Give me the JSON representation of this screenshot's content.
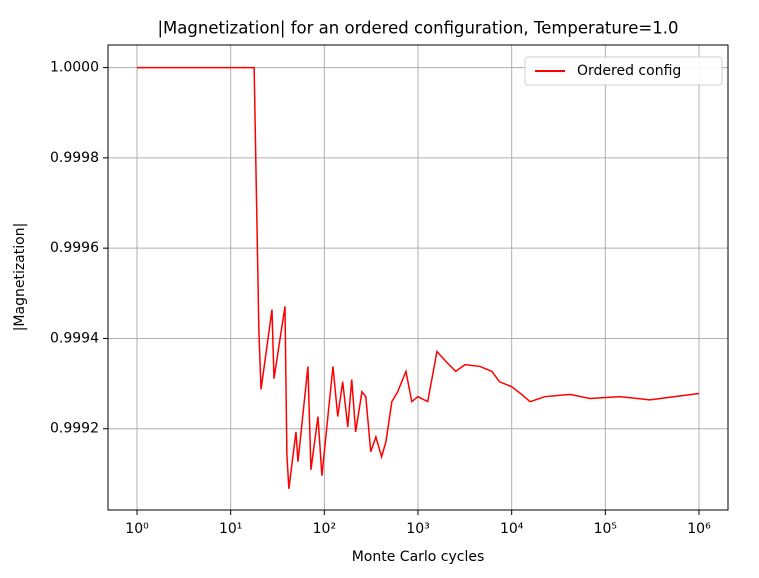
{
  "chart_data": {
    "type": "line",
    "title": "|Magnetization| for an ordered configuration, Temperature=1.0",
    "x_label": "Monte Carlo cycles",
    "y_label": "|Magnetization|",
    "x_scale": "log",
    "grid": true,
    "legend_position": "upper right",
    "xlim": [
      0.49,
      2040000
    ],
    "ylim": [
      0.99902,
      1.00005
    ],
    "xticks": [
      {
        "value": 1,
        "label": "10⁰"
      },
      {
        "value": 10,
        "label": "10¹"
      },
      {
        "value": 100,
        "label": "10²"
      },
      {
        "value": 1000,
        "label": "10³"
      },
      {
        "value": 10000,
        "label": "10⁴"
      },
      {
        "value": 100000,
        "label": "10⁵"
      },
      {
        "value": 1000000,
        "label": "10⁶"
      }
    ],
    "yticks": [
      {
        "value": 0.9992,
        "label": "0.9992"
      },
      {
        "value": 0.9994,
        "label": "0.9994"
      },
      {
        "value": 0.9996,
        "label": "0.9996"
      },
      {
        "value": 0.9998,
        "label": "0.9998"
      },
      {
        "value": 1.0,
        "label": "1.0000"
      }
    ],
    "series": [
      {
        "name": "Ordered config",
        "color": "#ff0000",
        "x": [
          1,
          17.8,
          20.0,
          21.1,
          27.6,
          29.0,
          38.0,
          39.8,
          41.8,
          49.8,
          52.3,
          66.8,
          71.9,
          85.5,
          94.2,
          123.6,
          139,
          157,
          178,
          196,
          216,
          252,
          277,
          313,
          355,
          409,
          454,
          526,
          607,
          743,
          858,
          997,
          1270,
          1592,
          1985,
          2530,
          3170,
          4580,
          6150,
          7410,
          10040,
          12800,
          15700,
          22600,
          41800,
          68400,
          143000,
          298000,
          552000,
          1000000
        ],
        "values": [
          1.0,
          1.0,
          0.999416,
          0.999287,
          0.999464,
          0.999311,
          0.999471,
          0.999144,
          0.999067,
          0.999193,
          0.999127,
          0.999338,
          0.999109,
          0.999227,
          0.999096,
          0.999338,
          0.999227,
          0.999304,
          0.999204,
          0.999309,
          0.999193,
          0.999282,
          0.999271,
          0.999149,
          0.999182,
          0.999138,
          0.999171,
          0.99926,
          0.999282,
          0.999327,
          0.99926,
          0.999271,
          0.99926,
          0.999371,
          0.999349,
          0.999327,
          0.999342,
          0.999338,
          0.999327,
          0.999304,
          0.999293,
          0.999276,
          0.99926,
          0.999271,
          0.999276,
          0.999267,
          0.999271,
          0.999264,
          0.999271,
          0.999278
        ]
      }
    ]
  }
}
